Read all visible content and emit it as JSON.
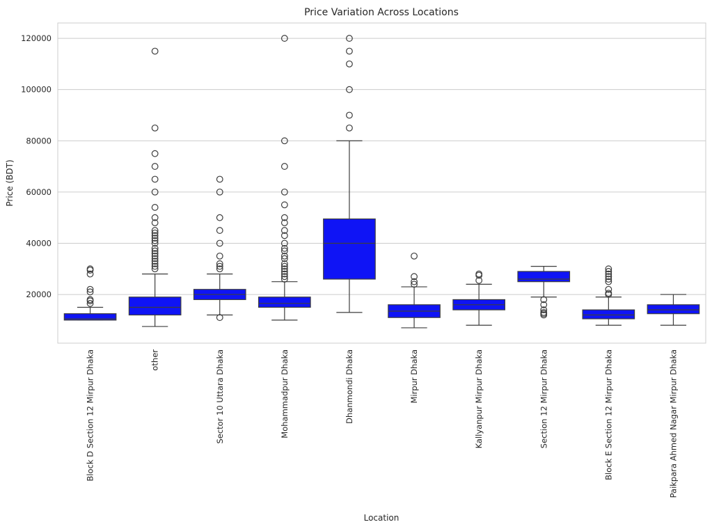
{
  "chart_data": {
    "type": "box",
    "title": "Price Variation Across Locations",
    "xlabel": "Location",
    "ylabel": "Price (BDT)",
    "ylim": [
      1000,
      126000
    ],
    "yticks": [
      20000,
      40000,
      60000,
      80000,
      100000,
      120000
    ],
    "grid": true,
    "box_color": "#0f14f5",
    "line_color": "#3d3d3d",
    "categories": [
      {
        "name": "Block D Section 12 Mirpur Dhaka",
        "whislo": 10000,
        "q1": 10000,
        "med": 10500,
        "q3": 12500,
        "whishi": 15000,
        "fliers": [
          16500,
          17500,
          18000,
          21000,
          22000,
          28000,
          29500,
          30000
        ]
      },
      {
        "name": "other",
        "whislo": 7500,
        "q1": 12000,
        "med": 15000,
        "q3": 19000,
        "whishi": 28000,
        "fliers": [
          30000,
          31000,
          32000,
          33000,
          34000,
          35000,
          36000,
          37000,
          38000,
          40000,
          41000,
          42000,
          43000,
          44000,
          45000,
          48000,
          50000,
          54000,
          60000,
          65000,
          70000,
          75000,
          85000,
          115000
        ]
      },
      {
        "name": "Sector 10 Uttara Dhaka",
        "whislo": 12000,
        "q1": 18000,
        "med": 20000,
        "q3": 22000,
        "whishi": 28000,
        "fliers": [
          11000,
          30000,
          31000,
          32000,
          35000,
          40000,
          45000,
          50000,
          60000,
          65000
        ]
      },
      {
        "name": "Mohammadpur Dhaka",
        "whislo": 10000,
        "q1": 15000,
        "med": 16500,
        "q3": 19000,
        "whishi": 25000,
        "fliers": [
          26000,
          27000,
          28000,
          29000,
          30000,
          31000,
          32000,
          34000,
          35000,
          37000,
          38000,
          40000,
          43000,
          45000,
          48000,
          50000,
          55000,
          60000,
          70000,
          80000,
          120000
        ]
      },
      {
        "name": "Dhanmondi Dhaka",
        "whislo": 13000,
        "q1": 26000,
        "med": 40000,
        "q3": 49500,
        "whishi": 80000,
        "fliers": [
          85000,
          90000,
          100000,
          110000,
          115000,
          120000
        ]
      },
      {
        "name": "Mirpur Dhaka",
        "whislo": 7000,
        "q1": 11000,
        "med": 13500,
        "q3": 16000,
        "whishi": 23000,
        "fliers": [
          24000,
          25000,
          27000,
          35000
        ]
      },
      {
        "name": "Kallyanpur Mirpur Dhaka",
        "whislo": 8000,
        "q1": 14000,
        "med": 16000,
        "q3": 18000,
        "whishi": 24000,
        "fliers": [
          25500,
          27500,
          28000
        ]
      },
      {
        "name": "Section 12 Mirpur Dhaka",
        "whislo": 19000,
        "q1": 25000,
        "med": 26000,
        "q3": 29000,
        "whishi": 31000,
        "fliers": [
          12000,
          12500,
          13000,
          14000,
          16000,
          18000
        ]
      },
      {
        "name": "Block E Section 12 Mirpur Dhaka",
        "whislo": 8000,
        "q1": 10500,
        "med": 12000,
        "q3": 14000,
        "whishi": 19000,
        "fliers": [
          20000,
          20500,
          22000,
          25000,
          26000,
          27000,
          28000,
          29000,
          30000
        ]
      },
      {
        "name": "Paikpara Ahmed Nagar Mirpur Dhaka",
        "whislo": 8000,
        "q1": 12500,
        "med": 14000,
        "q3": 16000,
        "whishi": 20000,
        "fliers": []
      }
    ]
  }
}
